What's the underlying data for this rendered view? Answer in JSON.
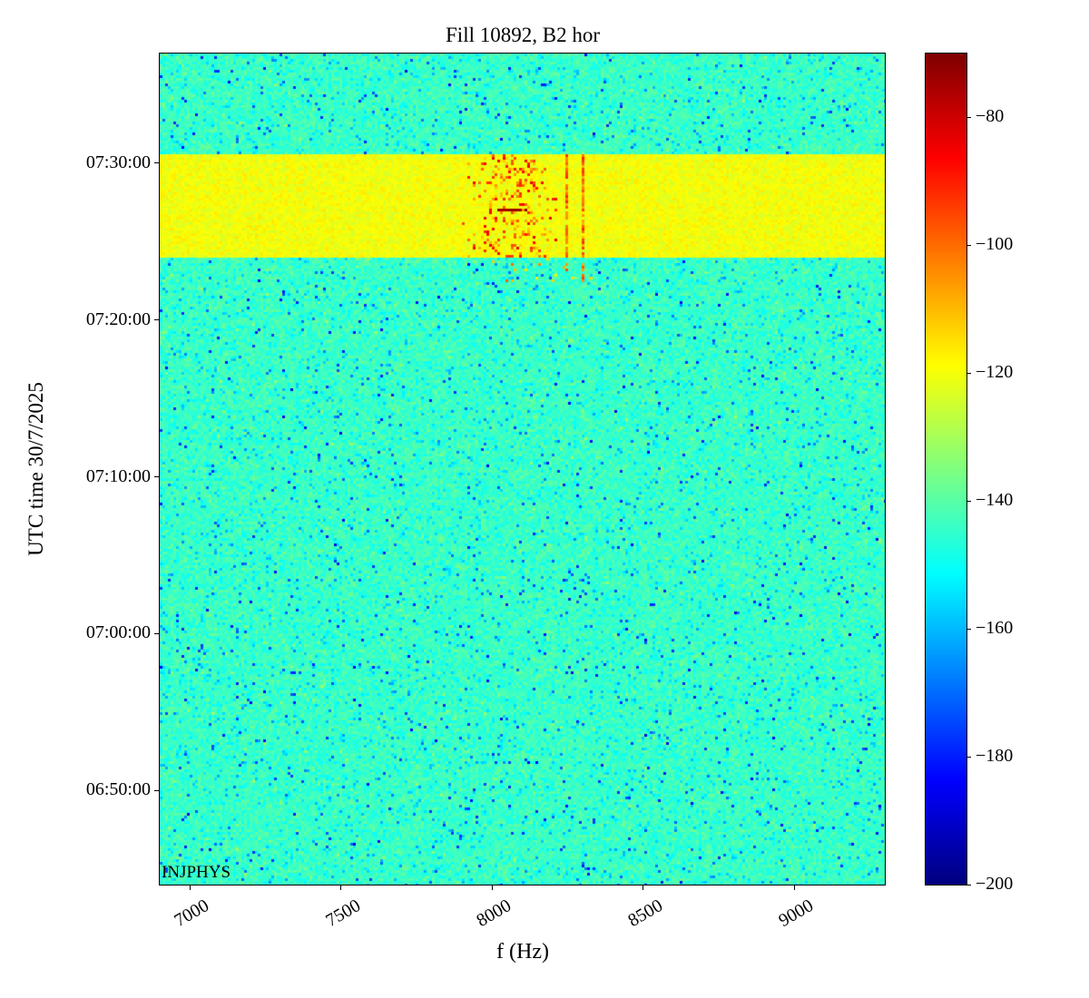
{
  "chart_data": {
    "type": "heatmap",
    "subtype": "spectrogram",
    "title": "Fill 10892, B2 hor",
    "xlabel": "f (Hz)",
    "ylabel": "UTC time 30/7/2025",
    "annotation": "INJPHYS",
    "colormap": "jet",
    "grid": false,
    "x_range_hz": [
      6900,
      9300
    ],
    "x_ticks": [
      {
        "value": 7000,
        "label": "7000"
      },
      {
        "value": 7500,
        "label": "7500"
      },
      {
        "value": 8000,
        "label": "8000"
      },
      {
        "value": 8500,
        "label": "8500"
      },
      {
        "value": 9000,
        "label": "9000"
      }
    ],
    "y_time_top": "07:37:00",
    "y_time_bottom": "06:44:00",
    "y_ticks": [
      {
        "time": "07:30:00",
        "label": "07:30:00"
      },
      {
        "time": "07:20:00",
        "label": "07:20:00"
      },
      {
        "time": "07:10:00",
        "label": "07:10:00"
      },
      {
        "time": "07:00:00",
        "label": "07:00:00"
      },
      {
        "time": "06:50:00",
        "label": "06:50:00"
      }
    ],
    "colorbar": {
      "vmin": -200,
      "vmax": -70,
      "ticks": [
        {
          "value": -80,
          "label": "−80"
        },
        {
          "value": -100,
          "label": "−100"
        },
        {
          "value": -120,
          "label": "−120"
        },
        {
          "value": -140,
          "label": "−140"
        },
        {
          "value": -160,
          "label": "−160"
        },
        {
          "value": -180,
          "label": "−180"
        },
        {
          "value": -200,
          "label": "−200"
        }
      ]
    },
    "background": {
      "level_db": -144,
      "noise_db": 7,
      "speck_probability": 0.03
    },
    "band": {
      "t_start": "07:24:00",
      "t_end": "07:30:30",
      "level_db": -120,
      "noise_db": 4
    },
    "hot_features": {
      "f_center_hz": 8060,
      "f_spread_hz": 160,
      "vertical_lines_hz": [
        8250,
        8300
      ],
      "peak_db": -74,
      "peak_time": "07:27:00",
      "peak_f_range_hz": [
        8020,
        8120
      ]
    }
  }
}
